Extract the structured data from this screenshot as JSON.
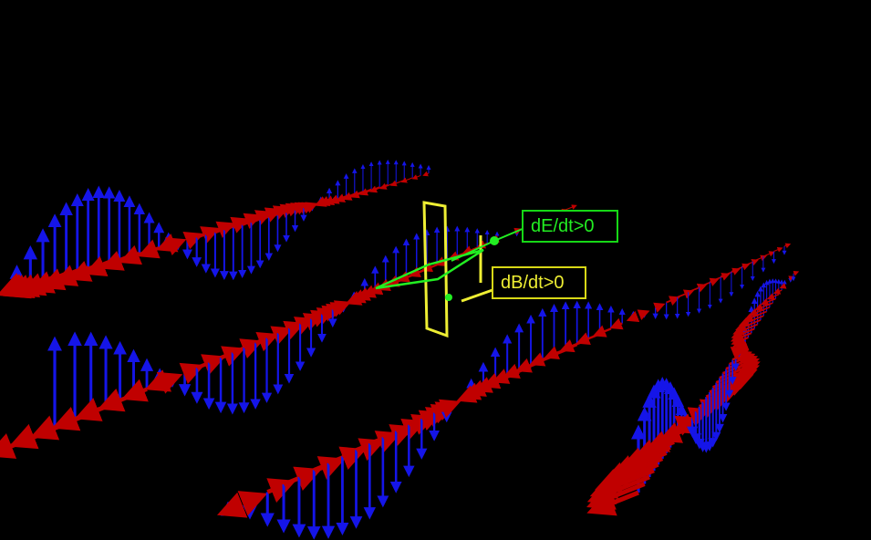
{
  "colors": {
    "background": "#000000",
    "magnetic_field": "#c00000",
    "electric_field": "#1515e8",
    "de_dt_indicator": "#22ee22",
    "db_dt_indicator": "#eeee33"
  },
  "labels": {
    "de_dt": "dE/dt>0",
    "db_dt": "dB/dt>0"
  }
}
